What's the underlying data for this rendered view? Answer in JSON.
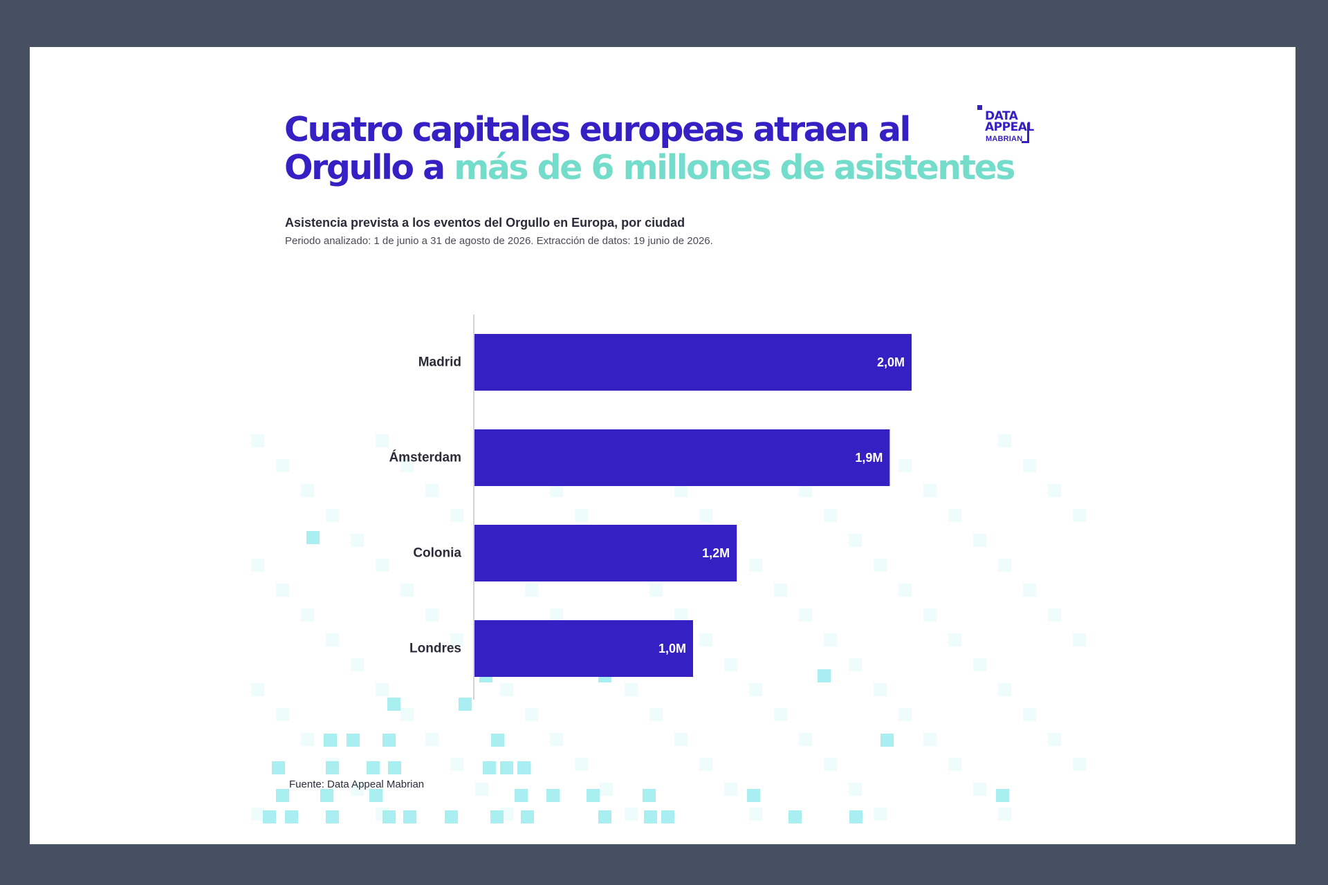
{
  "header": {
    "title_part1": "Cuatro capitales europeas atraen al Orgullo a ",
    "title_highlight": "más de 6 millones de asistentes",
    "subtitle": "Asistencia prevista a los eventos del Orgullo en Europa, por ciudad",
    "period": "Periodo analizado: 1 de junio a 31 de agosto de 2026. Extracción de datos: 19 junio de 2026."
  },
  "logo": {
    "line1": "DATA",
    "line2": "APPEAL",
    "line3": "MABRIAN"
  },
  "footer": {
    "source": "Fuente: Data Appeal Mabrian"
  },
  "colors": {
    "bar": "#3520c4",
    "highlight": "#74dccb",
    "background": "#465060",
    "decor": "#a9eef0"
  },
  "chart_data": {
    "type": "bar",
    "orientation": "horizontal",
    "categories": [
      "Madrid",
      "Ámsterdam",
      "Colonia",
      "Londres"
    ],
    "values": [
      2.0,
      1.9,
      1.2,
      1.0
    ],
    "data_labels": [
      "2,0M",
      "1,9M",
      "1,2M",
      "1,0M"
    ],
    "xlim": [
      0,
      2.0
    ],
    "grid": false,
    "legend": "none"
  }
}
